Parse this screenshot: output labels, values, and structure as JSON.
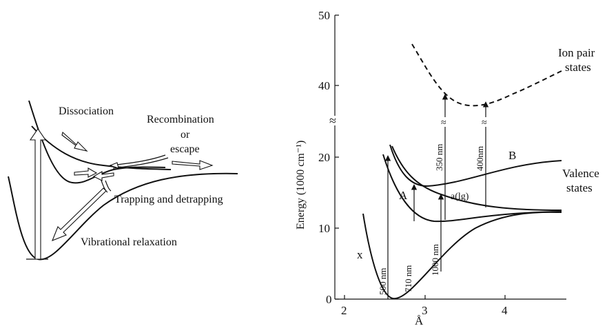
{
  "left_panel": {
    "labels": {
      "dissociation": "Dissociation",
      "recombination": "Recombination",
      "or": "or",
      "escape": "escape",
      "trapping": "Trapping and detrapping",
      "vibrational": "Vibrational relaxation"
    }
  },
  "right_panel": {
    "axes": {
      "ylabel": "Energy (1000 cm⁻¹)",
      "xlabel": "Å",
      "y_ticks": [
        "0",
        "10",
        "20",
        "40",
        "50"
      ],
      "x_ticks": [
        "2",
        "3",
        "4"
      ]
    },
    "curve_labels": {
      "x": "x",
      "A": "A",
      "B": "B",
      "a": "a(lg)"
    },
    "region_labels": {
      "ion_pair_1": "Ion pair",
      "ion_pair_2": "states",
      "valence_1": "Valence",
      "valence_2": "states"
    },
    "transitions": {
      "t500": "500 nm",
      "t710": "710 nm",
      "t1000": "1000 nm",
      "t350": "350 nm",
      "t400": "400nm"
    },
    "axis_break": "≈"
  }
}
